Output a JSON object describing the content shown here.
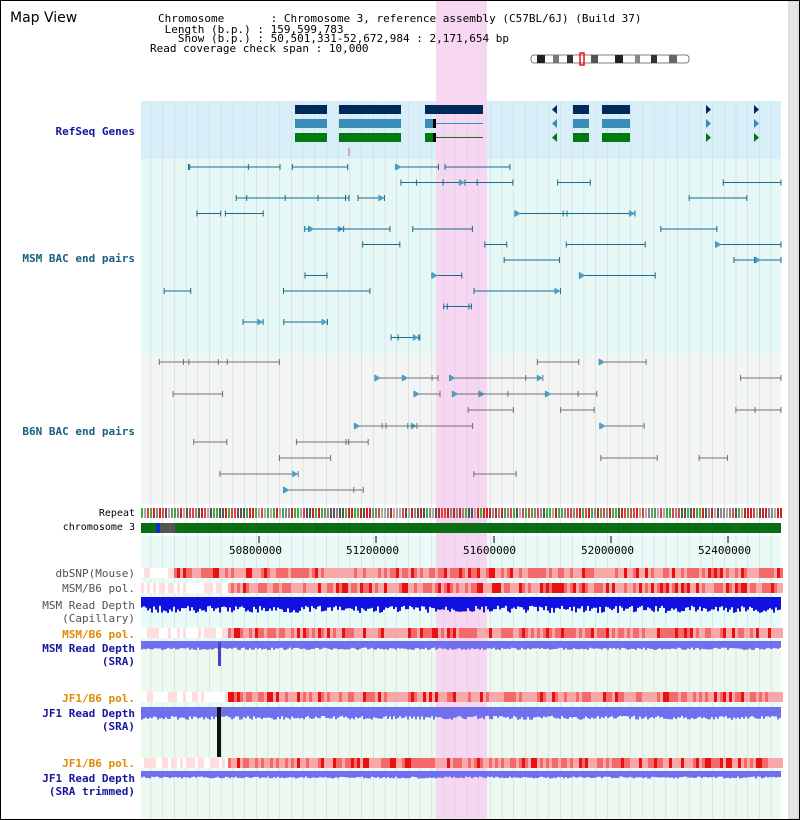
{
  "header": {
    "title": "Map View",
    "rows": [
      {
        "label": "Chromosome       ",
        "value": ": Chromosome 3, reference assembly (C57BL/6J) (Build 37)"
      },
      {
        "label": " Length (b.p.) ",
        "value": ": 159,599,783"
      },
      {
        "label": "   Show (b.p.) ",
        "value": ": 50,501,331-52,672,984 : 2,171,654 bp"
      },
      {
        "label": "Read coverage check span ",
        "value": ": 10,000"
      }
    ]
  },
  "tracks": {
    "refseq": "RefSeq Genes",
    "msm_bac": "MSM BAC end pairs",
    "b6n_bac": "B6N BAC end pairs",
    "repeat": "Repeat",
    "chromosome": "chromosome 3",
    "dbsnp": "dbSNP(Mouse)",
    "msm_b6_pol": "MSM/B6 pol.",
    "msm_depth_cap_1": "MSM Read Depth",
    "msm_depth_cap_2": "(Capillary)",
    "msm_b6_pol_sra": "MSM/B6 pol.",
    "msm_depth_sra_1": "MSM Read Depth",
    "msm_depth_sra_2": "(SRA)",
    "jf1_b6_pol": "JF1/B6 pol.",
    "jf1_depth_sra_1": "JF1 Read Depth",
    "jf1_depth_sra_2": "(SRA)",
    "jf1_b6_pol_trim": "JF1/B6 pol.",
    "jf1_depth_trim_1": "JF1 Read Depth",
    "jf1_depth_trim_2": "(SRA trimmed)"
  },
  "axis": {
    "ticks": [
      "50800000",
      "51200000",
      "51600000",
      "52000000",
      "52400000"
    ]
  },
  "colors": {
    "refseq_dark": "#002a5c",
    "refseq_mid": "#3a8cb6",
    "refseq_green": "#007a10",
    "msm_line": "#1a6a8a",
    "b6n_line": "#707070",
    "highlight": "#f7d6f1",
    "chrom_green": "#0a6e14",
    "depth_blue": "#1010e0",
    "depth_light": "#7070ee",
    "label_blue": "#1515a0",
    "label_orange": "#e08a00",
    "label_teal": "#1a5f80"
  }
}
